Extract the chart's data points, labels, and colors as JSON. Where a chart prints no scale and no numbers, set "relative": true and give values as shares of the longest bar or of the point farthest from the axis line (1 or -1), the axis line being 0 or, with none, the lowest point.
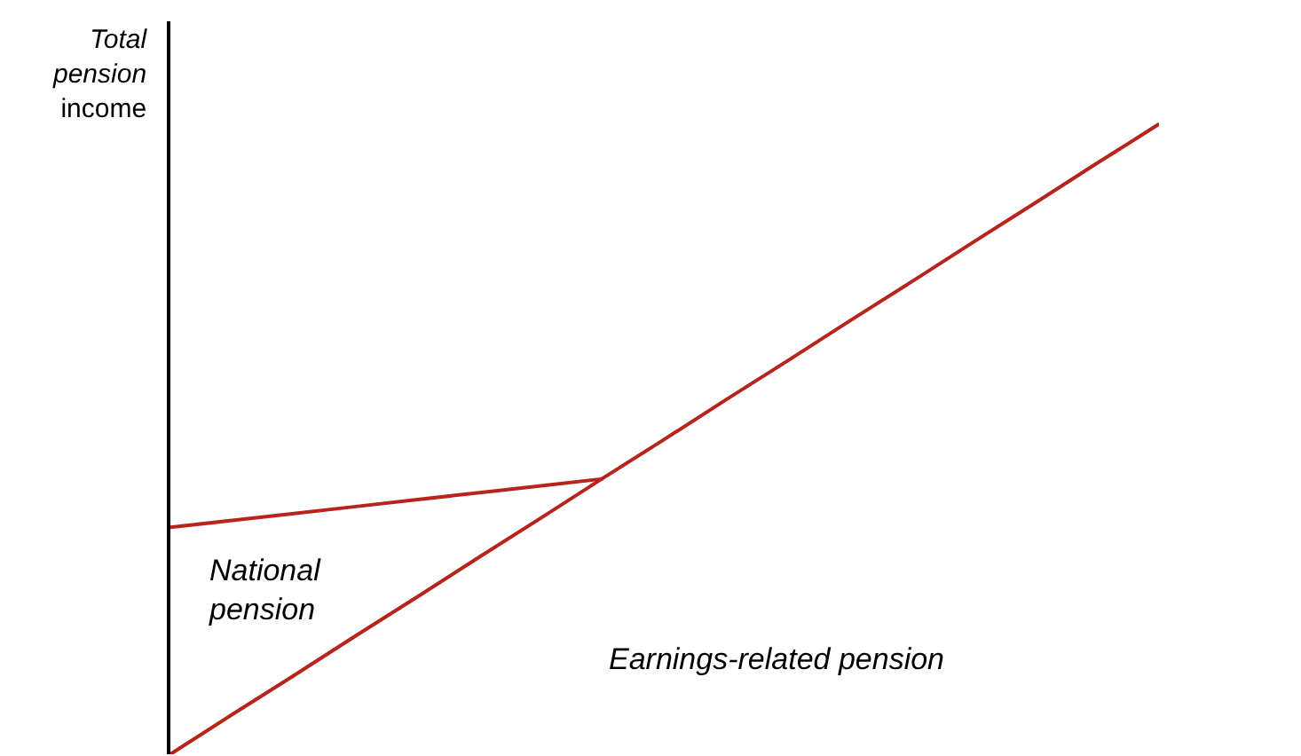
{
  "chart_data": {
    "type": "line",
    "relative": true,
    "ylabel": "Total pension income",
    "marker": "none",
    "line_style": "solid",
    "categories": [
      null,
      null,
      null,
      null,
      null,
      null,
      null,
      null,
      null,
      null,
      null,
      null,
      null,
      null,
      null,
      null,
      null
    ],
    "series": [
      {
        "color": "#b8231c",
        "values": [
          0,
          0.063,
          0.125,
          0.188,
          0.25,
          0.313,
          0.375,
          0.438,
          0.5,
          0.563,
          0.625,
          0.688,
          0.75,
          0.813,
          0.875,
          0.938,
          1
        ]
      },
      {
        "color": "#b8231c",
        "values": [
          0.36,
          0.371,
          0.382,
          0.393,
          0.404,
          0.415,
          0.426,
          0.437,
          null,
          null,
          null,
          null,
          null,
          null,
          null,
          null,
          null
        ]
      }
    ],
    "annotations": [
      "National pension",
      "Earnings-related pension"
    ]
  }
}
